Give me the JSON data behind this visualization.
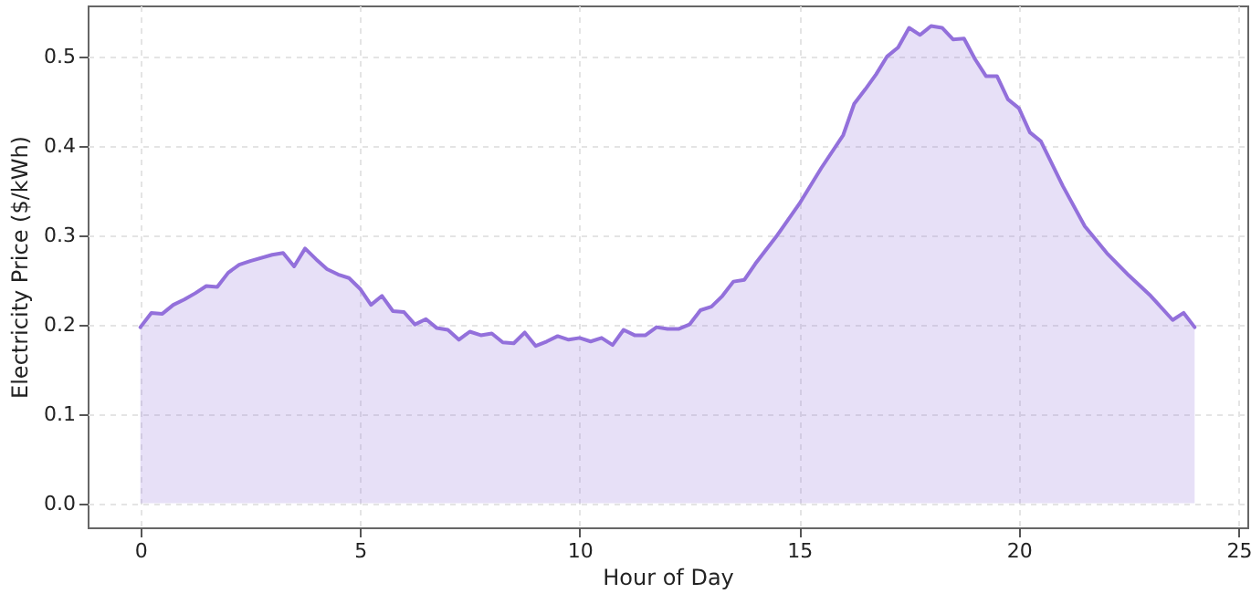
{
  "chart_data": {
    "type": "area",
    "xlabel": "Hour of Day",
    "ylabel": "Electricity Price ($/kWh)",
    "xlim": [
      -1.2,
      25.2
    ],
    "xticks": [
      0,
      5,
      10,
      15,
      20,
      25
    ],
    "ylim": [
      -0.027,
      0.557
    ],
    "yticks": [
      {
        "value": 0,
        "label": "0.0"
      },
      0.1,
      0.2,
      0.3,
      0.4,
      0.5
    ],
    "grid": true,
    "series": [
      {
        "color": "#9370db",
        "x": [
          0,
          0.25,
          0.5,
          0.75,
          1,
          1.25,
          1.5,
          1.75,
          2,
          2.25,
          2.5,
          3,
          3.25,
          3.5,
          3.75,
          4,
          4.25,
          4.5,
          4.75,
          5,
          5.25,
          5.5,
          5.75,
          6,
          6.25,
          6.5,
          6.75,
          7,
          7.25,
          7.5,
          7.75,
          8,
          8.25,
          8.5,
          8.75,
          9,
          9.25,
          9.5,
          9.75,
          10,
          10.25,
          10.5,
          10.75,
          11,
          11.25,
          11.5,
          11.75,
          12,
          12.25,
          12.5,
          12.75,
          13,
          13.25,
          13.5,
          13.75,
          14,
          14.5,
          15,
          15.5,
          16,
          16.25,
          16.5,
          16.75,
          17,
          17.25,
          17.5,
          17.75,
          18,
          18.25,
          18.5,
          18.75,
          19,
          19.25,
          19.5,
          19.75,
          20,
          20.25,
          20.5,
          21,
          21.5,
          22,
          22.5,
          23,
          23.5,
          23.75,
          24
        ],
        "values": [
          0.197,
          0.213,
          0.212,
          0.222,
          0.228,
          0.235,
          0.243,
          0.242,
          0.258,
          0.267,
          0.271,
          0.278,
          0.28,
          0.265,
          0.285,
          0.273,
          0.262,
          0.256,
          0.252,
          0.24,
          0.222,
          0.232,
          0.215,
          0.214,
          0.2,
          0.206,
          0.196,
          0.194,
          0.183,
          0.192,
          0.188,
          0.19,
          0.18,
          0.179,
          0.191,
          0.176,
          0.181,
          0.187,
          0.183,
          0.185,
          0.181,
          0.185,
          0.177,
          0.194,
          0.188,
          0.188,
          0.197,
          0.195,
          0.195,
          0.2,
          0.216,
          0.22,
          0.232,
          0.248,
          0.25,
          0.268,
          0.3,
          0.335,
          0.375,
          0.412,
          0.447,
          0.463,
          0.48,
          0.5,
          0.51,
          0.532,
          0.524,
          0.534,
          0.532,
          0.519,
          0.52,
          0.497,
          0.478,
          0.478,
          0.452,
          0.442,
          0.415,
          0.405,
          0.355,
          0.31,
          0.28,
          0.255,
          0.232,
          0.205,
          0.213,
          0.197
        ]
      }
    ]
  }
}
